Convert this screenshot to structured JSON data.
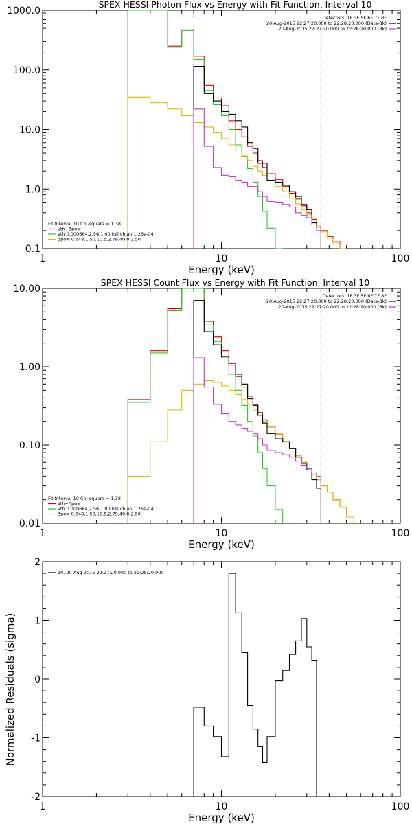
{
  "chart_data": [
    {
      "type": "line",
      "title": "SPEX HESSI Photon Flux vs Energy with Fit Function, Interval 10",
      "xlabel": "Energy (keV)",
      "ylabel": "",
      "xscale": "log",
      "yscale": "log",
      "xlim": [
        1,
        100
      ],
      "ylim": [
        0.1,
        1000
      ],
      "xticks": [
        "1",
        "10",
        "100"
      ],
      "yticks": [
        "0.1",
        "1.0",
        "10.0",
        "100.0",
        "1000.0"
      ],
      "legend_right": [
        {
          "text": "Detectors: 1F 3F 5F 6F 7F 8F",
          "color": ""
        },
        {
          "text": "20-Aug-2015 22:27:20.000 to 22:28:20.000 (Data-Bk)",
          "color": "#000000"
        },
        {
          "text": "20-Aug-2015 22:27:20.000 to 22:28:20.000 (Bk)",
          "color": "#cc33cc"
        }
      ],
      "legend_left": [
        {
          "text": "Fit Interval 10   Chi-square = 1.38",
          "color": ""
        },
        {
          "text": "vth+3pow",
          "color": "#dd0000"
        },
        {
          "text": "vth 0.000664,2.56,1.00  full chian 1.26e-04",
          "color": "#22cc22"
        },
        {
          "text": "3pow 0.648,1.50,10.5,2.79,40.0,2.50",
          "color": "#ddbb00"
        }
      ],
      "vlines": [
        {
          "x": 7,
          "style": "dotted"
        },
        {
          "x": 36,
          "style": "dashed"
        }
      ],
      "series": [
        {
          "name": "vth+3pow",
          "color": "#dd0000",
          "edges": [
            3,
            4,
            5,
            6,
            7,
            8,
            9,
            10,
            11,
            12,
            13,
            14,
            15,
            16,
            17,
            18,
            20,
            22,
            24,
            26,
            28,
            30,
            32,
            34,
            36,
            39,
            42,
            46,
            50
          ],
          "values": [
            1000,
            1000,
            250,
            470,
            170,
            55,
            34,
            25,
            14,
            10,
            7.5,
            5.2,
            4.0,
            3.0,
            2.3,
            1.8,
            1.45,
            1.1,
            0.85,
            0.68,
            0.52,
            0.4,
            0.31,
            0.25,
            0.2,
            0.16,
            0.13,
            0.1
          ]
        },
        {
          "name": "vth",
          "color": "#22cc22",
          "edges": [
            3,
            4,
            5,
            6,
            7,
            8,
            9,
            10,
            11,
            12,
            13,
            14,
            15,
            16,
            17,
            18,
            20,
            22
          ],
          "values": [
            1000,
            1000,
            240,
            460,
            150,
            45,
            26,
            17,
            10,
            5.5,
            3.5,
            2.2,
            1.3,
            0.75,
            0.42,
            0.22,
            0.1
          ]
        },
        {
          "name": "3pow",
          "color": "#ddbb00",
          "edges": [
            3,
            4,
            5,
            6,
            7,
            8,
            9,
            10,
            11,
            12,
            13,
            14,
            15,
            16,
            17,
            18,
            20,
            22,
            24,
            26,
            28,
            30,
            32,
            34,
            36,
            39,
            42,
            46,
            50
          ],
          "values": [
            35,
            28,
            22,
            17,
            13,
            11,
            9,
            7,
            5.5,
            4.5,
            3.6,
            3.0,
            2.4,
            2.0,
            1.7,
            1.4,
            1.1,
            0.9,
            0.7,
            0.56,
            0.45,
            0.37,
            0.3,
            0.24,
            0.19,
            0.15,
            0.12,
            0.1
          ]
        },
        {
          "name": "data-bk",
          "color": "#000000",
          "edges": [
            7,
            8,
            9,
            10,
            11,
            12,
            13,
            14,
            15,
            16,
            17,
            18,
            20,
            22,
            24,
            26,
            28,
            30,
            32,
            34,
            36
          ],
          "values": [
            115,
            40,
            30,
            20,
            18,
            14,
            11,
            6.0,
            4.8,
            2.7,
            2.7,
            1.4,
            1.3,
            1.15,
            0.9,
            0.75,
            0.55,
            0.45,
            0.27,
            0.23
          ]
        },
        {
          "name": "bk",
          "color": "#cc33cc",
          "edges": [
            7,
            8,
            9,
            10,
            11,
            12,
            13,
            14,
            15,
            16,
            17,
            18,
            20,
            22,
            24,
            26,
            28,
            30,
            32,
            34,
            36
          ],
          "values": [
            22,
            5.2,
            2.3,
            1.7,
            1.6,
            1.4,
            1.3,
            1.1,
            1.1,
            0.9,
            0.75,
            0.62,
            0.6,
            0.55,
            0.5,
            0.4,
            0.36,
            0.33,
            0.25,
            0.2
          ]
        }
      ]
    },
    {
      "type": "line",
      "title": "SPEX HESSI Count Flux vs Energy with Fit Function, Interval 10",
      "xlabel": "Energy (keV)",
      "ylabel": "",
      "xscale": "log",
      "yscale": "log",
      "xlim": [
        1,
        100
      ],
      "ylim": [
        0.01,
        10
      ],
      "xticks": [
        "1",
        "10",
        "100"
      ],
      "yticks": [
        "0.01",
        "0.10",
        "1.00",
        "10.00"
      ],
      "legend_right": [
        {
          "text": "Detectors: 1F 3F 5F 6F 7F 8F",
          "color": ""
        },
        {
          "text": "20-Aug-2015 22:27:20.000 to 22:28:20.000 (Data-Bk)",
          "color": "#000000"
        },
        {
          "text": "20-Aug-2015 22:27:20.000 to 22:28:20.000 (Bk)",
          "color": "#cc33cc"
        }
      ],
      "legend_left": [
        {
          "text": "Fit Interval 10   Chi-square = 1.38",
          "color": ""
        },
        {
          "text": "vth+3pow",
          "color": "#dd0000"
        },
        {
          "text": "vth 0.000664,2.56,1.00  full chian 1.26e-04",
          "color": "#22cc22"
        },
        {
          "text": "3pow 0.648,1.50,10.5,2.79,40.0,2.50",
          "color": "#ddbb00"
        }
      ],
      "vlines": [
        {
          "x": 7,
          "style": "dotted"
        },
        {
          "x": 36,
          "style": "dashed"
        }
      ],
      "series": [
        {
          "name": "vth+3pow",
          "color": "#dd0000",
          "edges": [
            3,
            4,
            5,
            6,
            7,
            8,
            9,
            10,
            11,
            12,
            13,
            14,
            15,
            16,
            17,
            18,
            20,
            22,
            24,
            26,
            28,
            30,
            32,
            34,
            36,
            39,
            42,
            46,
            50,
            55
          ],
          "values": [
            0.38,
            1.6,
            5.5,
            10,
            10,
            3.8,
            2.4,
            1.6,
            1.1,
            0.75,
            0.55,
            0.42,
            0.33,
            0.26,
            0.21,
            0.17,
            0.135,
            0.11,
            0.09,
            0.073,
            0.06,
            0.05,
            0.042,
            0.036,
            0.03,
            0.025,
            0.02,
            0.016,
            0.012
          ]
        },
        {
          "name": "vth",
          "color": "#22cc22",
          "edges": [
            3,
            4,
            5,
            6,
            7,
            8,
            9,
            10,
            11,
            12,
            13,
            14,
            15,
            16,
            17,
            18,
            20,
            22
          ],
          "values": [
            0.35,
            1.5,
            5.2,
            10,
            10,
            3.4,
            2.1,
            1.3,
            0.8,
            0.5,
            0.32,
            0.2,
            0.13,
            0.08,
            0.05,
            0.03,
            0.015
          ]
        },
        {
          "name": "3pow",
          "color": "#ddbb00",
          "edges": [
            3,
            4,
            5,
            6,
            7,
            8,
            9,
            10,
            11,
            12,
            13,
            14,
            15,
            16,
            17,
            18,
            20,
            22,
            24,
            26,
            28,
            30,
            32,
            34,
            36,
            39,
            42,
            46,
            50,
            55
          ],
          "values": [
            0.04,
            0.11,
            0.28,
            0.5,
            0.6,
            0.66,
            0.63,
            0.57,
            0.5,
            0.44,
            0.38,
            0.33,
            0.28,
            0.24,
            0.2,
            0.17,
            0.14,
            0.11,
            0.09,
            0.073,
            0.06,
            0.05,
            0.042,
            0.036,
            0.03,
            0.025,
            0.02,
            0.016,
            0.012
          ]
        },
        {
          "name": "data-bk",
          "color": "#000000",
          "edges": [
            7,
            8,
            9,
            10,
            11,
            12,
            13,
            14,
            15,
            16,
            17,
            18,
            20,
            22,
            24,
            26,
            28,
            30,
            32,
            34,
            36
          ],
          "values": [
            7.0,
            2.8,
            1.9,
            1.35,
            1.05,
            0.8,
            0.6,
            0.39,
            0.32,
            0.24,
            0.19,
            0.14,
            0.12,
            0.11,
            0.09,
            0.07,
            0.058,
            0.048,
            0.036,
            0.028
          ]
        },
        {
          "name": "bk",
          "color": "#cc33cc",
          "edges": [
            7,
            8,
            9,
            10,
            11,
            12,
            13,
            14,
            15,
            16,
            17,
            18,
            20,
            22,
            24,
            26,
            28,
            30,
            32,
            34,
            36
          ],
          "values": [
            1.3,
            0.55,
            0.33,
            0.25,
            0.2,
            0.18,
            0.16,
            0.15,
            0.14,
            0.12,
            0.1,
            0.085,
            0.08,
            0.075,
            0.07,
            0.062,
            0.055,
            0.05,
            0.045,
            0.04
          ]
        }
      ]
    },
    {
      "type": "line",
      "title": "",
      "xlabel": "Energy (keV)",
      "ylabel": "Normalized Residuals (sigma)",
      "xscale": "log",
      "yscale": "linear",
      "xlim": [
        1,
        100
      ],
      "ylim": [
        -2,
        2
      ],
      "xticks": [
        "1",
        "10",
        "100"
      ],
      "yticks": [
        "-2",
        "-1",
        "0",
        "1",
        "2"
      ],
      "legend_left": [
        {
          "text": "10. 20-Aug-2015 22:27:20.000 to 22:28:20.000",
          "color": "#000000"
        }
      ],
      "series": [
        {
          "name": "residuals",
          "color": "#000000",
          "edges": [
            7,
            8,
            9,
            10,
            11,
            12,
            13,
            14,
            15,
            16,
            17,
            18,
            20,
            22,
            24,
            26,
            28,
            30,
            32,
            34,
            36
          ],
          "values": [
            -0.48,
            -0.8,
            -0.98,
            -1.32,
            1.8,
            1.13,
            0.45,
            -0.45,
            -0.85,
            -1.15,
            -1.42,
            -0.98,
            -0.03,
            0.15,
            0.42,
            0.65,
            1.03,
            0.55,
            0.32,
            -2.2
          ]
        }
      ]
    }
  ]
}
